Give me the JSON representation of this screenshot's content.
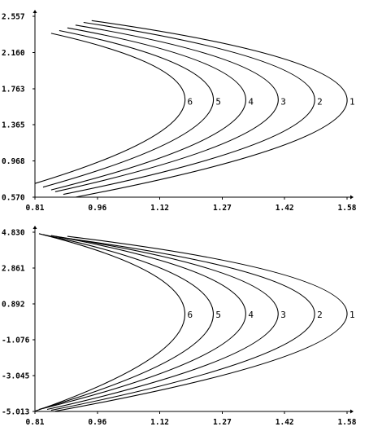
{
  "chart_data": [
    {
      "type": "line",
      "title": "",
      "xlabel": "",
      "ylabel": "",
      "xlim": [
        0.81,
        1.58
      ],
      "ylim": [
        0.57,
        2.557
      ],
      "x_ticks": [
        "0.81",
        "0.96",
        "1.12",
        "1.27",
        "1.42",
        "1.58"
      ],
      "y_ticks": [
        "0.570",
        "0.968",
        "1.365",
        "1.763",
        "2.160",
        "2.557"
      ],
      "grid": false,
      "legend": "none",
      "series": [
        {
          "name": "1",
          "points": [
            [
              0.95,
              2.51
            ],
            [
              1.58,
              1.62
            ],
            [
              0.91,
              0.57
            ]
          ]
        },
        {
          "name": "2",
          "points": [
            [
              0.93,
              2.49
            ],
            [
              1.5,
              1.62
            ],
            [
              0.88,
              0.6
            ]
          ]
        },
        {
          "name": "3",
          "points": [
            [
              0.91,
              2.46
            ],
            [
              1.41,
              1.62
            ],
            [
              0.86,
              0.63
            ]
          ]
        },
        {
          "name": "4",
          "points": [
            [
              0.89,
              2.43
            ],
            [
              1.33,
              1.62
            ],
            [
              0.85,
              0.65
            ]
          ]
        },
        {
          "name": "5",
          "points": [
            [
              0.87,
              2.4
            ],
            [
              1.25,
              1.62
            ],
            [
              0.83,
              0.68
            ]
          ]
        },
        {
          "name": "6",
          "points": [
            [
              0.85,
              2.37
            ],
            [
              1.18,
              1.62
            ],
            [
              0.81,
              0.72
            ]
          ]
        }
      ]
    },
    {
      "type": "line",
      "title": "",
      "xlabel": "",
      "ylabel": "",
      "xlim": [
        0.81,
        1.58
      ],
      "ylim": [
        -5.013,
        4.83
      ],
      "x_ticks": [
        "0.81",
        "0.96",
        "1.12",
        "1.27",
        "1.42",
        "1.58"
      ],
      "y_ticks": [
        "-5.013",
        "-3.045",
        "-1.076",
        "0.892",
        "2.861",
        "4.830"
      ],
      "grid": false,
      "legend": "none",
      "series": [
        {
          "name": "1",
          "points": [
            [
              0.89,
              4.6
            ],
            [
              1.58,
              0.3
            ],
            [
              0.86,
              -5.0
            ]
          ]
        },
        {
          "name": "2",
          "points": [
            [
              0.87,
              4.55
            ],
            [
              1.5,
              0.3
            ],
            [
              0.85,
              -4.95
            ]
          ]
        },
        {
          "name": "3",
          "points": [
            [
              0.86,
              4.6
            ],
            [
              1.41,
              0.3
            ],
            [
              0.84,
              -4.9
            ]
          ]
        },
        {
          "name": "4",
          "points": [
            [
              0.85,
              4.65
            ],
            [
              1.33,
              0.3
            ],
            [
              0.83,
              -4.85
            ]
          ]
        },
        {
          "name": "5",
          "points": [
            [
              0.83,
              4.7
            ],
            [
              1.25,
              0.3
            ],
            [
              0.82,
              -4.9
            ]
          ]
        },
        {
          "name": "6",
          "points": [
            [
              0.82,
              4.75
            ],
            [
              1.18,
              0.3
            ],
            [
              0.81,
              -5.0
            ]
          ]
        }
      ]
    }
  ]
}
